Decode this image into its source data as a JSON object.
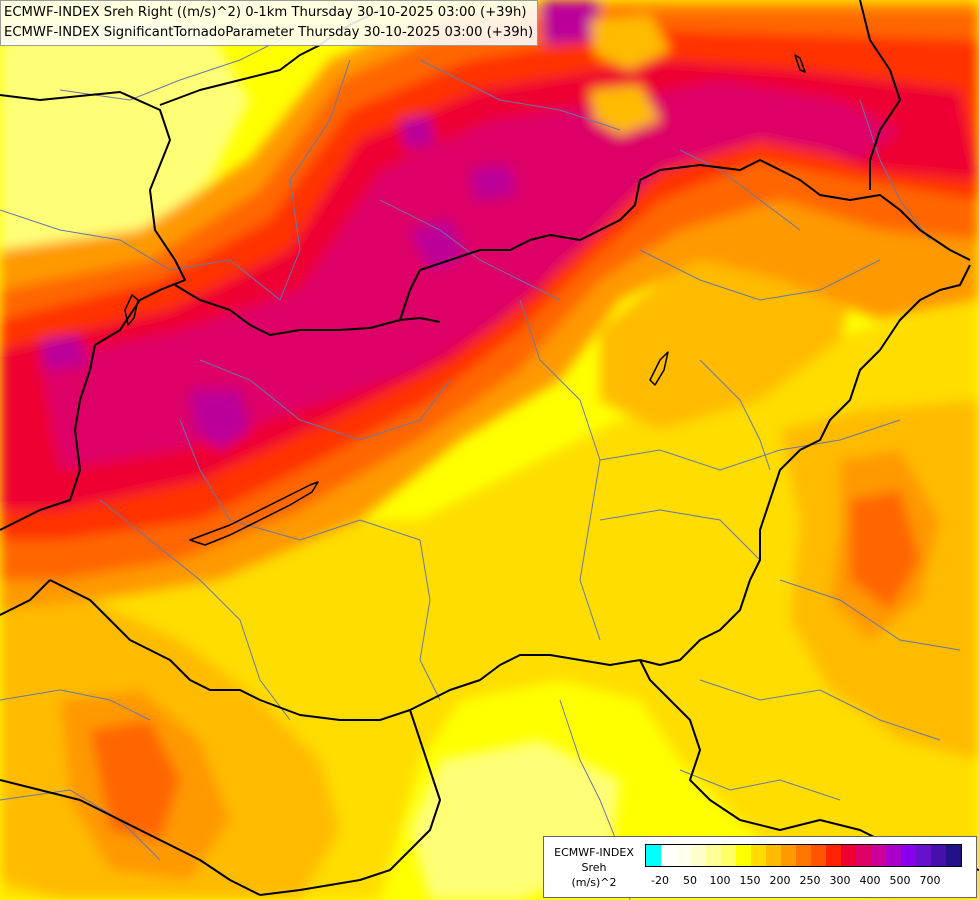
{
  "title": {
    "line1": "ECMWF-INDEX Sreh Right ((m/s)^2) 0-1km Thursday 30-10-2025 03:00 (+39h)",
    "line2": "ECMWF-INDEX SignificantTornadoParameter Thursday 30-10-2025 03:00 (+39h)"
  },
  "legend": {
    "title_line1": "ECMWF-INDEX",
    "title_line2": "Sreh",
    "title_line3": "(m/s)^2",
    "colors": [
      "#00ffff",
      "#ffffff",
      "#ffffee",
      "#ffffcc",
      "#ffff99",
      "#ffff66",
      "#ffff00",
      "#ffdd00",
      "#ffbb00",
      "#ff9900",
      "#ff7700",
      "#ff5500",
      "#ff2200",
      "#ee0033",
      "#dd0066",
      "#cc0099",
      "#aa00cc",
      "#8800ee",
      "#6611cc",
      "#4411aa",
      "#221188"
    ],
    "tick_labels": [
      "-20",
      "50",
      "100",
      "150",
      "200",
      "250",
      "300",
      "400",
      "500",
      "700"
    ]
  },
  "map_colors": {
    "background": "#ffff00",
    "yellow_light": "#ffff77",
    "yellow_gold": "#ffdd00",
    "orange_light": "#ffbb00",
    "orange": "#ff9900",
    "orange_dark": "#ff6600",
    "red_orange": "#ff3300",
    "red": "#ee0033",
    "crimson": "#dd0066",
    "magenta": "#bb0099",
    "border": "#000000",
    "region_line": "#6677aa"
  }
}
